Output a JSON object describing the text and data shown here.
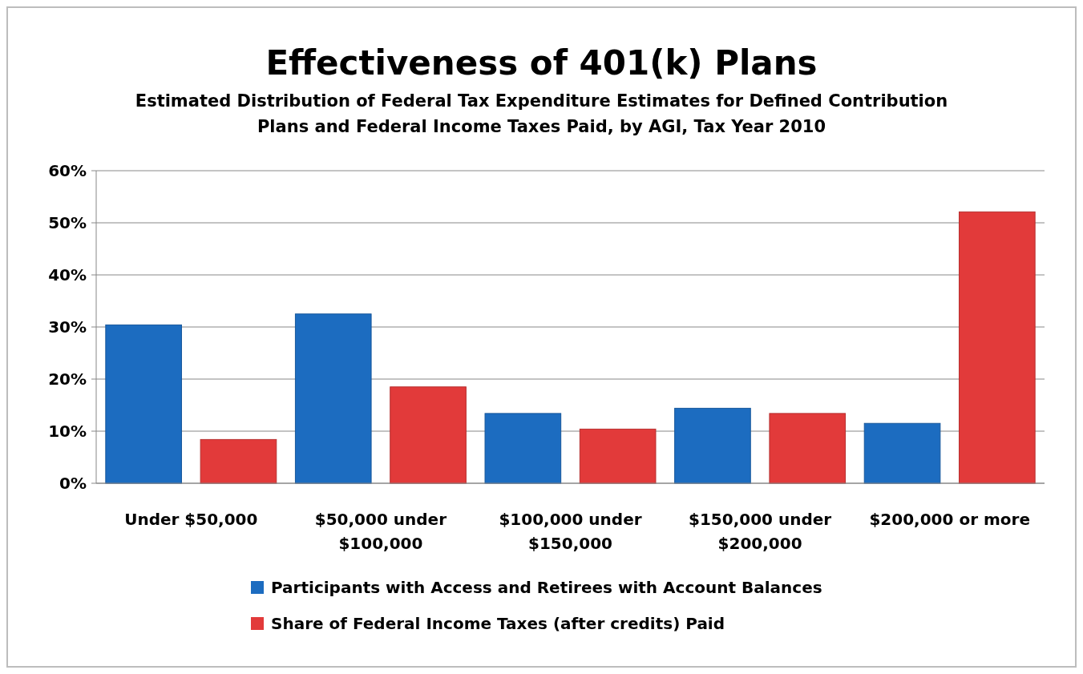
{
  "chart_data": {
    "type": "bar",
    "title": "Effectiveness of 401(k) Plans",
    "subtitle": "Estimated Distribution of Federal Tax Expenditure Estimates for Defined Contribution Plans and Federal Income Taxes Paid, by AGI, Tax Year 2010",
    "categories": [
      "Under $50,000",
      "$50,000 under $100,000",
      "$100,000 under $150,000",
      "$150,000 under $200,000",
      "$200,000 or more"
    ],
    "series": [
      {
        "name": "Participants with Access and Retirees with Account Balances",
        "color": "#1c6cc0",
        "values": [
          30.4,
          32.5,
          13.4,
          14.4,
          11.5
        ]
      },
      {
        "name": "Share of Federal Income Taxes (after credits) Paid",
        "color": "#e23a3a",
        "values": [
          8.4,
          18.5,
          10.4,
          13.4,
          52.1
        ]
      }
    ],
    "ylim": [
      0,
      60
    ],
    "yticks": [
      {
        "value": 0,
        "label": "0%"
      },
      {
        "value": 10,
        "label": "10%"
      },
      {
        "value": 20,
        "label": "20%"
      },
      {
        "value": 30,
        "label": "30%"
      },
      {
        "value": 40,
        "label": "40%"
      },
      {
        "value": 50,
        "label": "50%"
      },
      {
        "value": 60,
        "label": "60%"
      }
    ],
    "grid": "y",
    "legend": "bottom"
  }
}
